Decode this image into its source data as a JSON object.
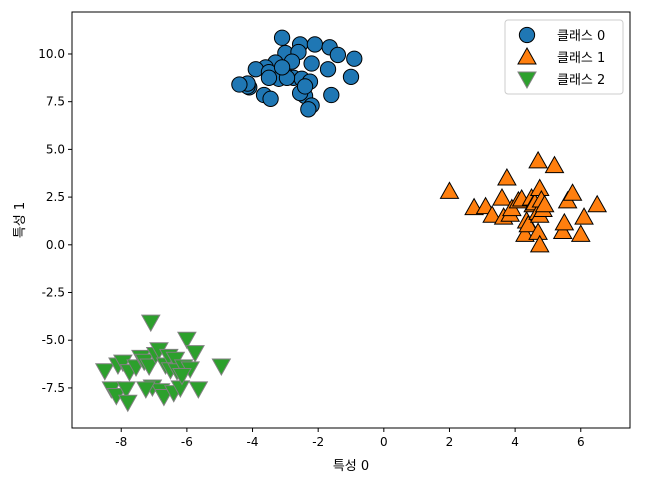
{
  "chart_data": {
    "type": "scatter",
    "title": "",
    "xlabel": "특성 0",
    "ylabel": "특성 1",
    "xlim": [
      -9.5,
      7.5
    ],
    "ylim": [
      -9.6,
      12.2
    ],
    "xticks": [
      -8,
      -6,
      -4,
      -2,
      0,
      2,
      4,
      6
    ],
    "xtick_labels": [
      "-8",
      "-6",
      "-4",
      "-2",
      "0",
      "2",
      "4",
      "6"
    ],
    "yticks": [
      -7.5,
      -5.0,
      -2.5,
      0.0,
      2.5,
      5.0,
      7.5,
      10.0
    ],
    "ytick_labels": [
      "-7.5",
      "-5.0",
      "-2.5",
      "0.0",
      "2.5",
      "5.0",
      "7.5",
      "10.0"
    ],
    "grid": false,
    "legend_position": "top-right",
    "series": [
      {
        "name": "클래스 0",
        "marker": "circle",
        "color": "#1f77b4",
        "edge_color": "#000000",
        "points": [
          [
            -3.1,
            10.85
          ],
          [
            -3.0,
            10.05
          ],
          [
            -2.55,
            10.5
          ],
          [
            -2.6,
            10.1
          ],
          [
            -2.1,
            10.5
          ],
          [
            -1.65,
            10.35
          ],
          [
            -1.4,
            9.95
          ],
          [
            -0.9,
            9.75
          ],
          [
            -1.7,
            9.2
          ],
          [
            -2.2,
            9.5
          ],
          [
            -2.8,
            9.6
          ],
          [
            -3.3,
            9.55
          ],
          [
            -3.6,
            9.3
          ],
          [
            -3.9,
            9.2
          ],
          [
            -3.5,
            9.05
          ],
          [
            -3.0,
            8.9
          ],
          [
            -2.75,
            8.75
          ],
          [
            -3.2,
            8.7
          ],
          [
            -3.5,
            8.75
          ],
          [
            -2.5,
            8.7
          ],
          [
            -2.25,
            8.55
          ],
          [
            -4.1,
            8.25
          ],
          [
            -4.15,
            8.3
          ],
          [
            -4.15,
            8.45
          ],
          [
            -3.65,
            7.85
          ],
          [
            -3.45,
            7.65
          ],
          [
            -2.4,
            7.8
          ],
          [
            -2.55,
            7.95
          ],
          [
            -2.2,
            7.3
          ],
          [
            -2.3,
            7.1
          ],
          [
            -1.6,
            7.85
          ],
          [
            -1.0,
            8.8
          ],
          [
            -2.95,
            8.75
          ],
          [
            -3.1,
            9.3
          ],
          [
            -2.4,
            8.3
          ],
          [
            -4.4,
            8.4
          ]
        ]
      },
      {
        "name": "클래스 1",
        "marker": "triangle-up",
        "color": "#ff7f0e",
        "edge_color": "#000000",
        "points": [
          [
            2.0,
            2.8
          ],
          [
            2.75,
            1.95
          ],
          [
            3.1,
            2.0
          ],
          [
            3.3,
            1.55
          ],
          [
            3.6,
            2.45
          ],
          [
            3.75,
            3.5
          ],
          [
            3.65,
            1.45
          ],
          [
            3.85,
            1.6
          ],
          [
            3.9,
            1.9
          ],
          [
            4.1,
            2.3
          ],
          [
            4.2,
            2.4
          ],
          [
            4.3,
            0.55
          ],
          [
            4.35,
            1.25
          ],
          [
            4.4,
            1.05
          ],
          [
            4.5,
            2.45
          ],
          [
            4.55,
            2.1
          ],
          [
            4.6,
            2.2
          ],
          [
            4.7,
            0.65
          ],
          [
            4.7,
            4.4
          ],
          [
            4.75,
            2.95
          ],
          [
            4.7,
            1.7
          ],
          [
            4.75,
            1.55
          ],
          [
            4.8,
            2.35
          ],
          [
            4.85,
            1.85
          ],
          [
            4.9,
            2.1
          ],
          [
            5.2,
            4.15
          ],
          [
            5.45,
            0.7
          ],
          [
            5.5,
            1.15
          ],
          [
            5.6,
            2.3
          ],
          [
            5.75,
            2.7
          ],
          [
            6.0,
            0.55
          ],
          [
            6.1,
            1.45
          ],
          [
            6.5,
            2.1
          ],
          [
            4.75,
            0.0
          ]
        ]
      },
      {
        "name": "클래스 2",
        "marker": "triangle-down",
        "color": "#2ca02c",
        "edge_color": "#808080",
        "points": [
          [
            -7.1,
            -4.05
          ],
          [
            -8.5,
            -6.6
          ],
          [
            -8.3,
            -7.55
          ],
          [
            -8.15,
            -7.9
          ],
          [
            -8.1,
            -6.3
          ],
          [
            -7.95,
            -6.15
          ],
          [
            -7.85,
            -7.55
          ],
          [
            -7.8,
            -8.25
          ],
          [
            -7.75,
            -6.65
          ],
          [
            -7.55,
            -6.4
          ],
          [
            -7.4,
            -5.9
          ],
          [
            -7.3,
            -6.1
          ],
          [
            -7.15,
            -6.35
          ],
          [
            -7.05,
            -7.45
          ],
          [
            -6.95,
            -5.75
          ],
          [
            -6.85,
            -5.5
          ],
          [
            -6.8,
            -7.65
          ],
          [
            -6.7,
            -7.95
          ],
          [
            -6.65,
            -6.3
          ],
          [
            -6.55,
            -5.85
          ],
          [
            -6.5,
            -6.55
          ],
          [
            -6.4,
            -7.75
          ],
          [
            -6.35,
            -6.0
          ],
          [
            -6.3,
            -6.6
          ],
          [
            -6.2,
            -7.5
          ],
          [
            -6.1,
            -6.4
          ],
          [
            -6.0,
            -4.95
          ],
          [
            -5.9,
            -6.5
          ],
          [
            -5.75,
            -5.65
          ],
          [
            -5.65,
            -7.55
          ],
          [
            -4.95,
            -6.35
          ],
          [
            -7.25,
            -7.55
          ],
          [
            -6.15,
            -6.85
          ]
        ]
      }
    ]
  }
}
